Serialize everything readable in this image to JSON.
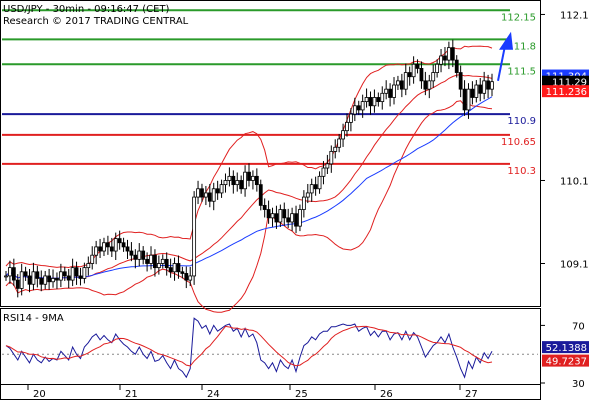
{
  "header": {
    "symbol_line": "USD/JPY - 30min - 09:16:47 (CET)",
    "research_line": "Research © 2017 TRADING CENTRAL"
  },
  "chart_data": [
    {
      "type": "candlestick",
      "title": "USD/JPY - 30min - 09:16:47 (CET)",
      "subtitle": "Research © 2017 TRADING CENTRAL",
      "ylim": [
        108.6,
        112.25
      ],
      "x_day_labels": [
        "20",
        "21",
        "24",
        "25",
        "26",
        "27"
      ],
      "y_tick_labels": [
        {
          "value": 112.1,
          "label": "112.1"
        },
        {
          "value": 110.1,
          "label": "110.1"
        },
        {
          "value": 109.1,
          "label": "109.1"
        }
      ],
      "price_boxes": [
        {
          "value": 111.304,
          "label": "111.304",
          "color": "#1a3cff"
        },
        {
          "value": 111.29,
          "label": "111.29",
          "color": "#000000"
        },
        {
          "value": 111.236,
          "label": "111.236",
          "color": "#ff1a1a"
        }
      ],
      "resistance_levels": [
        {
          "value": 112.15,
          "label": "112.15",
          "color": "#2a9a2a"
        },
        {
          "value": 111.8,
          "label": "111.8",
          "color": "#2a9a2a"
        },
        {
          "value": 111.5,
          "label": "111.5",
          "color": "#2a9a2a"
        }
      ],
      "pivot_level": {
        "value": 110.9,
        "label": "110.9",
        "color": "#1a1a9a"
      },
      "support_levels": [
        {
          "value": 110.65,
          "label": "110.65",
          "color": "#e02020"
        },
        {
          "value": 110.3,
          "label": "110.3",
          "color": "#e02020"
        }
      ],
      "candle_color": "#000000",
      "bollinger_color": "#e02020",
      "moving_average_color": "#1a3cff",
      "arrow_color": "#1a3cff",
      "series_close": [
        108.95,
        109.05,
        108.9,
        108.8,
        109.0,
        108.95,
        108.85,
        109.0,
        108.92,
        108.85,
        108.95,
        108.88,
        108.92,
        108.9,
        109.0,
        108.95,
        108.9,
        109.05,
        108.95,
        108.92,
        109.05,
        109.1,
        109.2,
        109.3,
        109.25,
        109.35,
        109.3,
        109.25,
        109.4,
        109.35,
        109.3,
        109.25,
        109.2,
        109.15,
        109.25,
        109.15,
        109.1,
        109.2,
        109.05,
        109.1,
        109.15,
        109.05,
        109.0,
        109.1,
        109.0,
        108.98,
        108.9,
        108.95,
        109.9,
        110.0,
        109.9,
        109.95,
        109.85,
        110.0,
        109.95,
        110.05,
        110.1,
        110.15,
        110.05,
        110.1,
        110.0,
        110.2,
        110.1,
        110.15,
        110.05,
        109.8,
        109.75,
        109.65,
        109.7,
        109.6,
        109.75,
        109.65,
        109.6,
        109.7,
        109.55,
        109.75,
        109.9,
        109.95,
        110.05,
        110.0,
        110.15,
        110.25,
        110.3,
        110.45,
        110.5,
        110.6,
        110.7,
        110.8,
        110.9,
        111.0,
        110.95,
        111.05,
        111.1,
        111.0,
        111.1,
        111.05,
        111.15,
        111.2,
        111.1,
        111.25,
        111.3,
        111.2,
        111.4,
        111.35,
        111.5,
        111.45,
        111.3,
        111.2,
        111.3,
        111.4,
        111.5,
        111.6,
        111.55,
        111.7,
        111.55,
        111.4,
        111.2,
        110.95,
        111.2,
        111.1,
        111.25,
        111.15,
        111.3,
        111.2,
        111.29
      ],
      "forecast_arrow": {
        "from": 111.3,
        "to": 111.82
      },
      "candle_bbox_note": ""
    },
    {
      "type": "line",
      "title": "RSI14 - 9MA",
      "ylim": [
        30,
        80
      ],
      "y_tick_labels": [
        {
          "value": 70,
          "label": "70"
        },
        {
          "value": 30,
          "label": "30"
        }
      ],
      "reference_level": 50,
      "price_boxes": [
        {
          "value": 52.1388,
          "label": "52.1388",
          "color": "#1a1a9a"
        },
        {
          "value": 49.7237,
          "label": "49.7237",
          "color": "#e02020"
        }
      ],
      "rsi_color": "#1a1a9a",
      "ma_color": "#e02020",
      "rsi_values": [
        56,
        54,
        50,
        46,
        52,
        48,
        44,
        50,
        46,
        44,
        48,
        45,
        47,
        46,
        52,
        49,
        46,
        55,
        50,
        47,
        55,
        58,
        62,
        64,
        60,
        63,
        60,
        58,
        64,
        60,
        57,
        55,
        52,
        50,
        55,
        50,
        47,
        52,
        45,
        46,
        49,
        44,
        40,
        46,
        40,
        38,
        34,
        40,
        75,
        73,
        68,
        70,
        64,
        70,
        66,
        68,
        70,
        71,
        66,
        68,
        62,
        68,
        62,
        64,
        58,
        46,
        44,
        40,
        44,
        38,
        46,
        42,
        40,
        46,
        38,
        48,
        56,
        58,
        62,
        60,
        64,
        66,
        66,
        69,
        69,
        70,
        71,
        70,
        70,
        71,
        66,
        68,
        69,
        63,
        66,
        62,
        66,
        66,
        60,
        64,
        65,
        60,
        66,
        60,
        65,
        62,
        55,
        48,
        52,
        56,
        58,
        62,
        58,
        64,
        55,
        48,
        40,
        34,
        45,
        40,
        48,
        44,
        51,
        47,
        52
      ]
    }
  ]
}
